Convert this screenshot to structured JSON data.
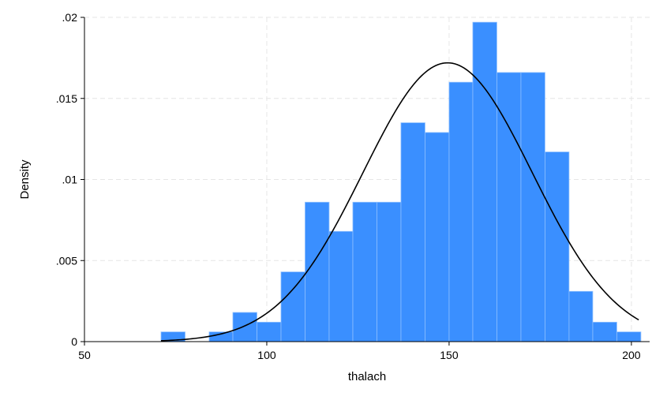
{
  "chart_data": {
    "type": "bar",
    "subtype": "histogram",
    "xlabel": "thalach",
    "ylabel": "Density",
    "xlim": [
      50,
      205
    ],
    "ylim": [
      0,
      0.02
    ],
    "xticks": [
      50,
      100,
      150,
      200
    ],
    "xtick_labels": [
      "50",
      "100",
      "150",
      "200"
    ],
    "yticks": [
      0,
      0.005,
      0.01,
      0.015,
      0.02
    ],
    "ytick_labels": [
      "0",
      ".005",
      ".01",
      ".015",
      ".02"
    ],
    "grid": true,
    "bar_color": "#3a8fff",
    "bar_edge_color": "#8fc0ff",
    "curve_color": "#000000",
    "bins": [
      {
        "x0": 71.0,
        "x1": 77.6,
        "value": 0.0006
      },
      {
        "x0": 77.6,
        "x1": 84.2,
        "value": 0.0
      },
      {
        "x0": 84.2,
        "x1": 90.7,
        "value": 0.0006
      },
      {
        "x0": 90.7,
        "x1": 97.3,
        "value": 0.0018
      },
      {
        "x0": 97.3,
        "x1": 103.9,
        "value": 0.0012
      },
      {
        "x0": 103.9,
        "x1": 110.5,
        "value": 0.0043
      },
      {
        "x0": 110.5,
        "x1": 117.1,
        "value": 0.0086
      },
      {
        "x0": 117.1,
        "x1": 123.6,
        "value": 0.0068
      },
      {
        "x0": 123.6,
        "x1": 130.2,
        "value": 0.0086
      },
      {
        "x0": 130.2,
        "x1": 136.8,
        "value": 0.0086
      },
      {
        "x0": 136.8,
        "x1": 143.4,
        "value": 0.0135
      },
      {
        "x0": 143.4,
        "x1": 150.0,
        "value": 0.0129
      },
      {
        "x0": 150.0,
        "x1": 156.5,
        "value": 0.016
      },
      {
        "x0": 156.5,
        "x1": 163.1,
        "value": 0.0197
      },
      {
        "x0": 163.1,
        "x1": 169.7,
        "value": 0.0166
      },
      {
        "x0": 169.7,
        "x1": 176.3,
        "value": 0.0166
      },
      {
        "x0": 176.3,
        "x1": 182.9,
        "value": 0.0117
      },
      {
        "x0": 182.9,
        "x1": 189.4,
        "value": 0.0031
      },
      {
        "x0": 189.4,
        "x1": 196.0,
        "value": 0.0012
      },
      {
        "x0": 196.0,
        "x1": 202.6,
        "value": 0.0006
      }
    ],
    "normal_curve": {
      "mean": 149.6,
      "sd": 23.2,
      "x_range": [
        71,
        202
      ]
    }
  }
}
